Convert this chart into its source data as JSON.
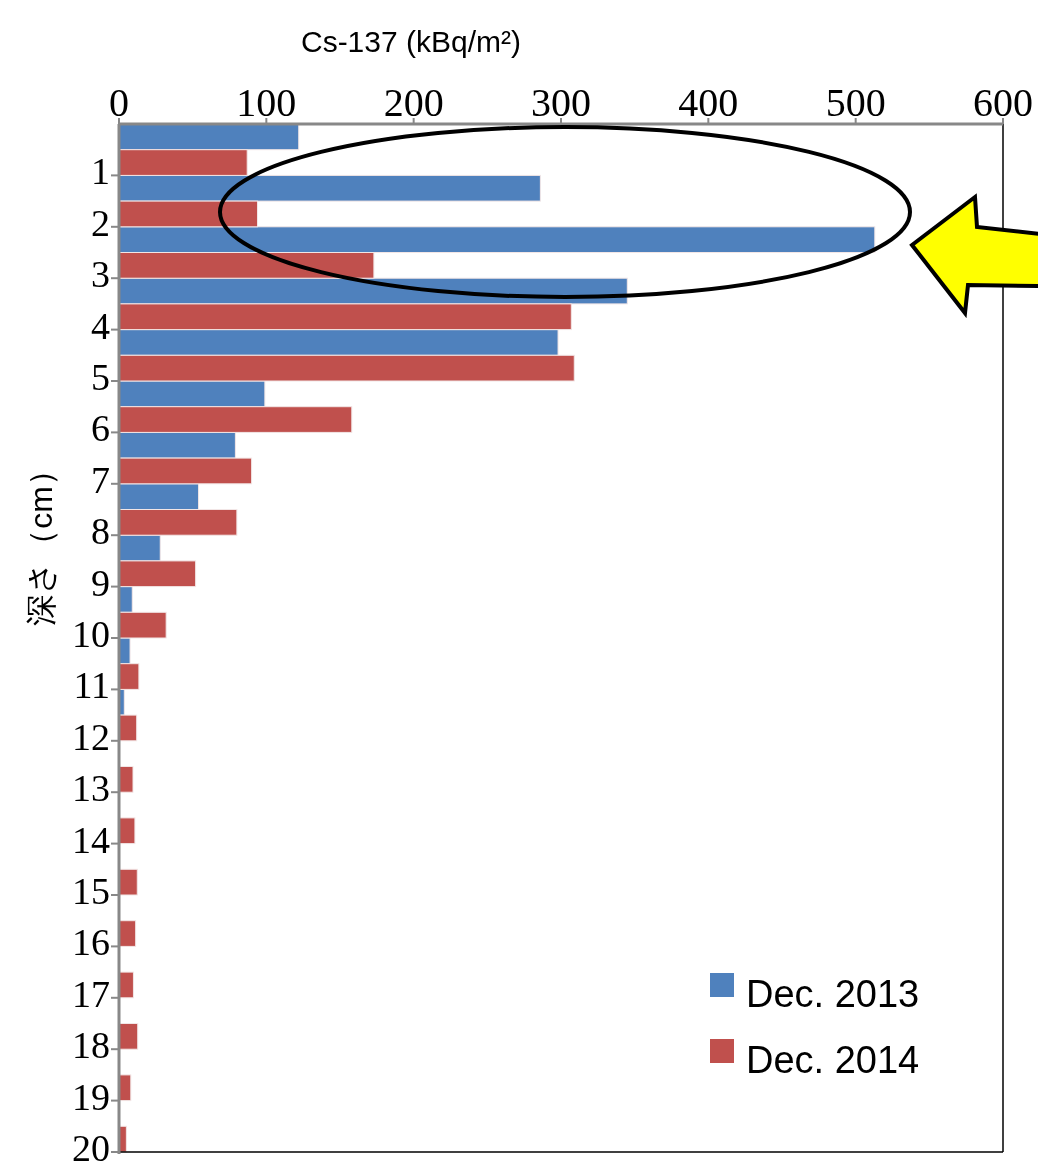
{
  "chart_data": {
    "type": "bar",
    "orientation": "horizontal",
    "xlabel": "Cs-137 (kBq/m²)",
    "ylabel": "深さ（cm）",
    "xlim": [
      0,
      600
    ],
    "xticks": [
      0,
      100,
      200,
      300,
      400,
      500,
      600
    ],
    "ylim": [
      20,
      0
    ],
    "yticks": [
      1,
      2,
      3,
      4,
      5,
      6,
      7,
      8,
      9,
      10,
      11,
      12,
      13,
      14,
      15,
      16,
      17,
      18,
      19,
      20
    ],
    "grid": false,
    "legend": "bottom right",
    "series": [
      {
        "name": "Dec. 2013",
        "color": "#4f81bd",
        "x": [
          0.25,
          1.25,
          2.25,
          3.25,
          4.25,
          5.25,
          6.25,
          7.25,
          8.25,
          9.25,
          10.25,
          11.25
        ],
        "values": [
          122,
          286,
          513,
          345,
          298,
          99,
          79,
          54,
          28,
          9,
          7.5,
          3.6
        ]
      },
      {
        "name": "Dec. 2014",
        "color": "#c0504d",
        "x": [
          0.75,
          1.75,
          2.75,
          3.75,
          4.75,
          5.75,
          6.75,
          7.75,
          8.75,
          9.75,
          10.75,
          11.75,
          12.75,
          13.75,
          14.75,
          15.75,
          16.75,
          17.75,
          18.75,
          19.75
        ],
        "values": [
          87,
          94,
          173,
          307,
          309,
          158,
          90,
          80,
          52,
          32,
          13.5,
          12,
          9.5,
          10.8,
          12.4,
          11.3,
          9.8,
          12.7,
          8,
          5
        ]
      }
    ]
  }
}
